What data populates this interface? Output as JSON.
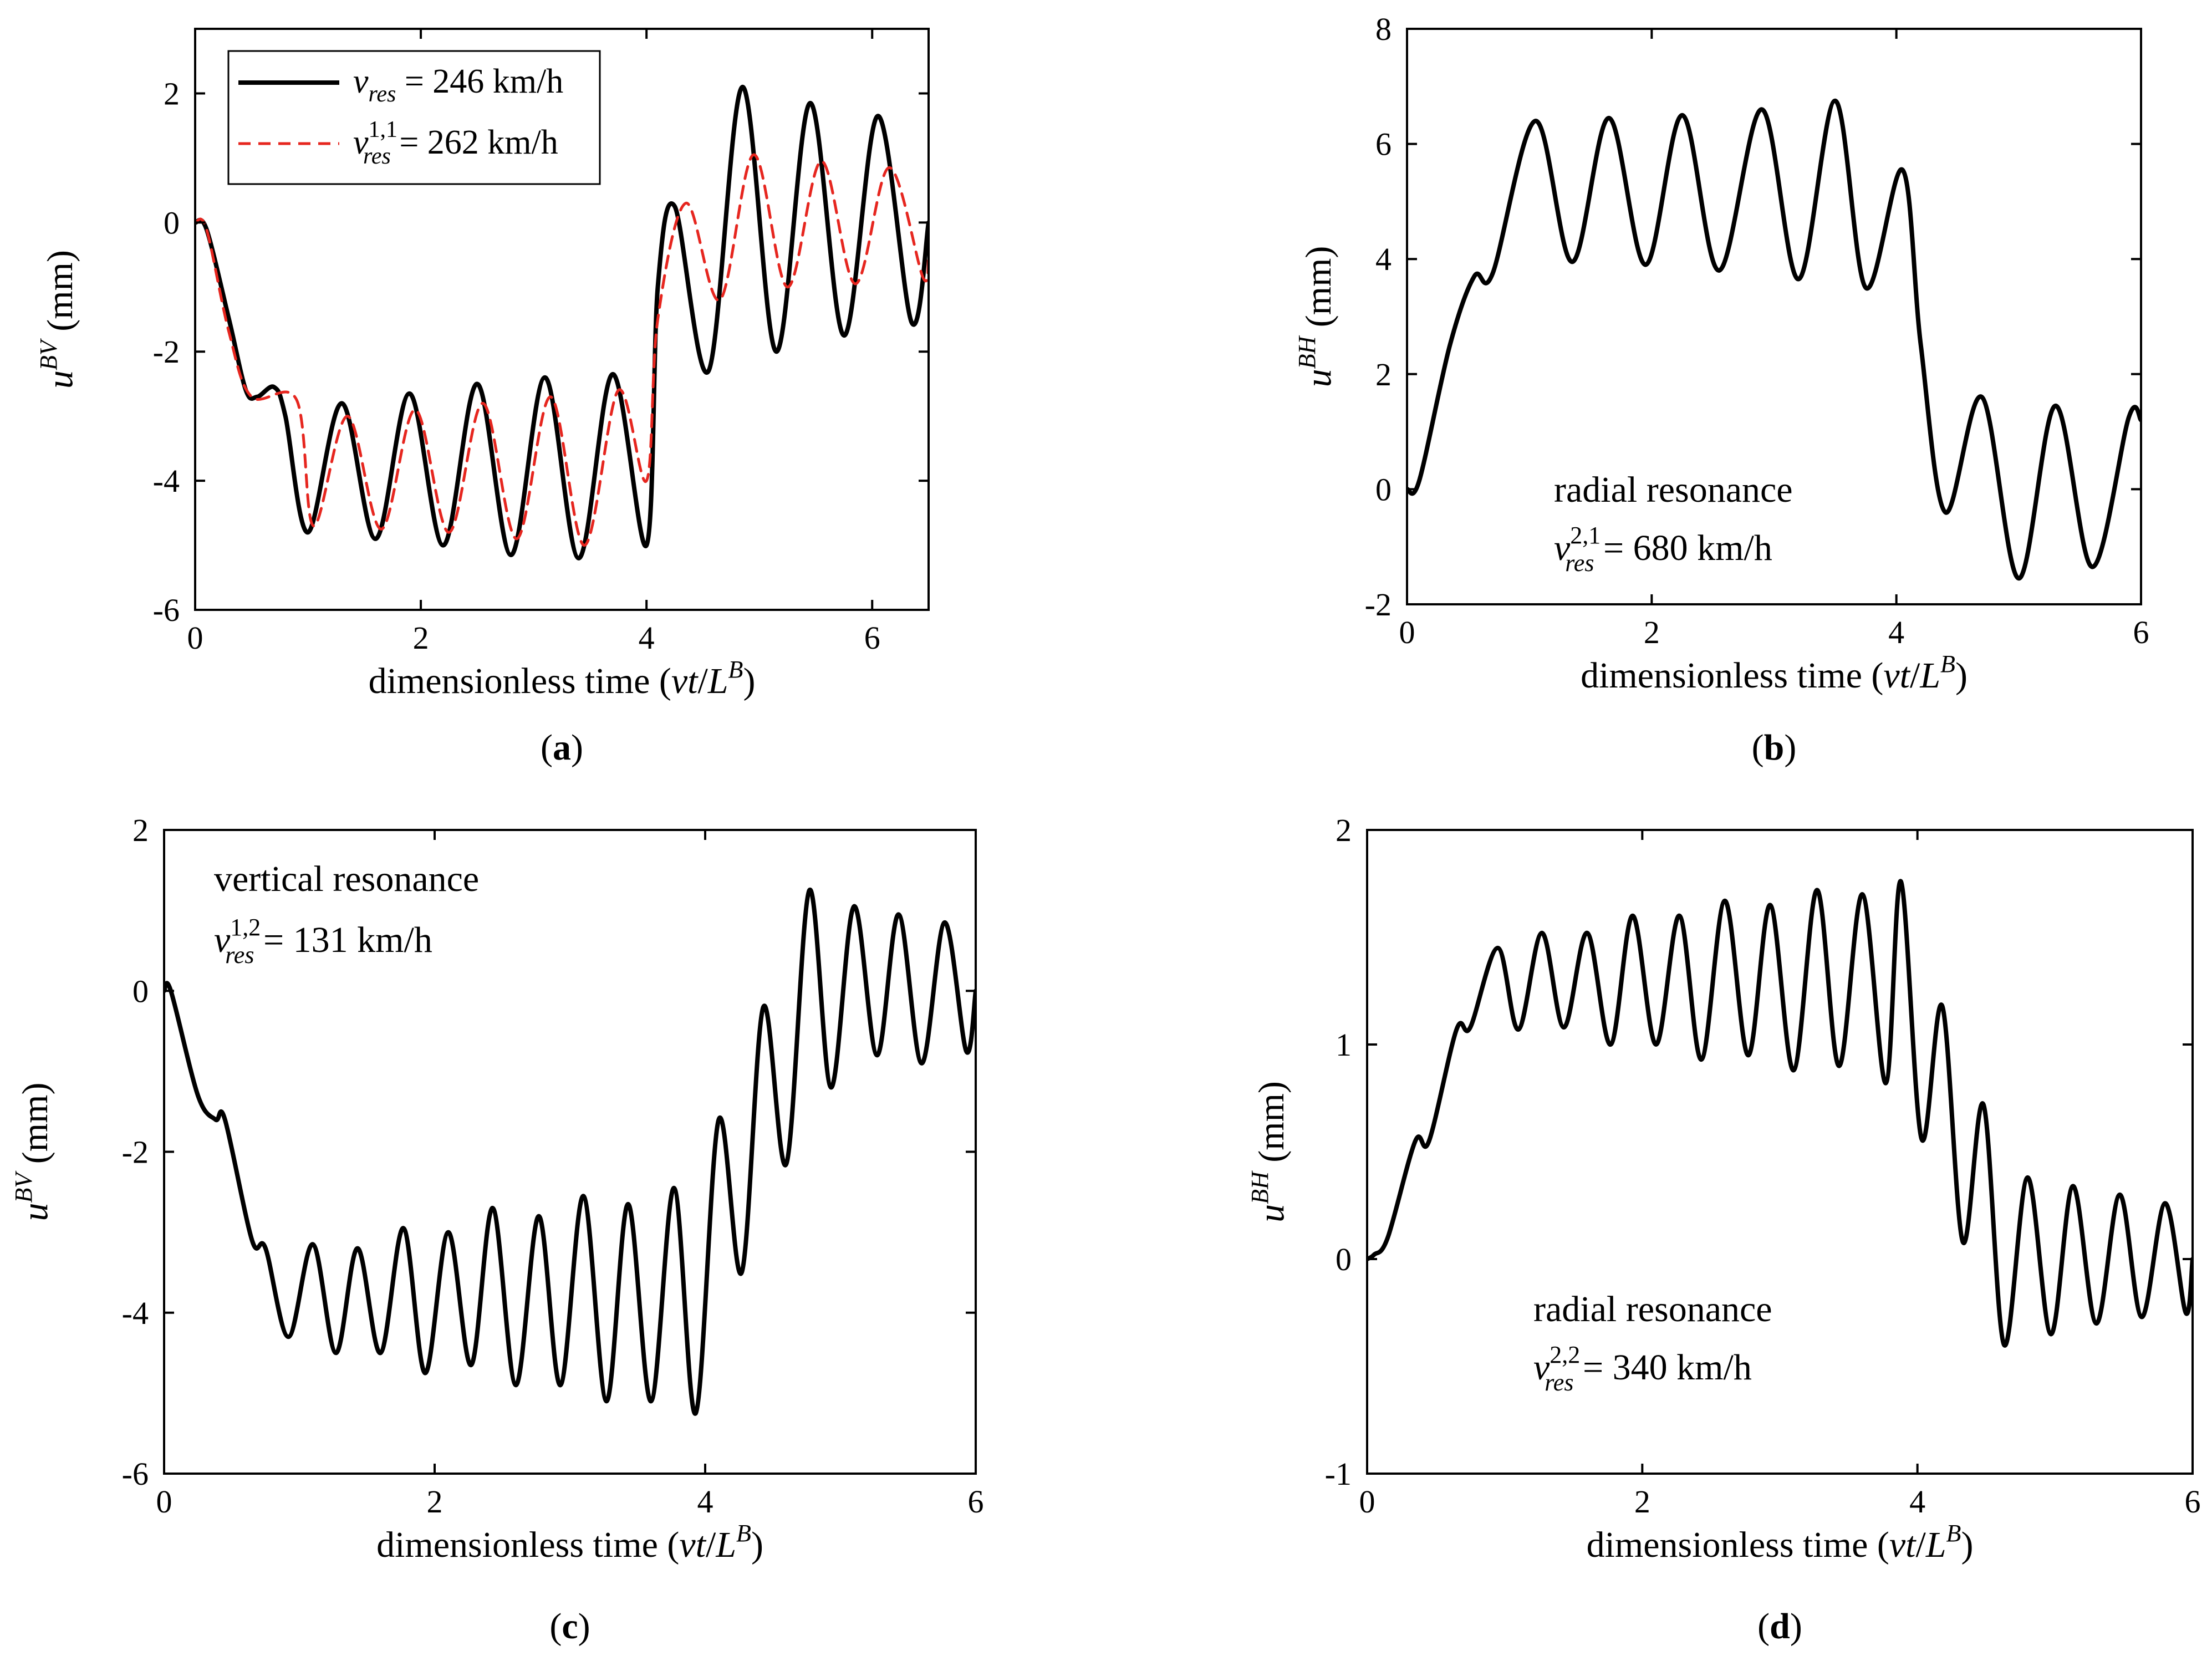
{
  "figure": {
    "panels_order": [
      "a",
      "b",
      "c",
      "d"
    ]
  },
  "chart_data": [
    {
      "id": "a",
      "type": "line",
      "sublabel": "a",
      "xlabel_text": "dimensionless time (vt/L^B)",
      "ylabel_text": "u^BV (mm)",
      "xlabel": {
        "pre": "dimensionless time (",
        "var": "vt",
        "slash": "/",
        "L": "L",
        "sup": "B",
        "post": ")"
      },
      "ylabel": {
        "u": "u",
        "sup": "BV",
        "unit": " (mm)"
      },
      "xlim": [
        0,
        6.5
      ],
      "ylim": [
        -6,
        3
      ],
      "xticks": [
        0,
        2,
        4,
        6
      ],
      "yticks": [
        -6,
        -4,
        -2,
        0,
        2
      ],
      "legend": {
        "position": "top-left",
        "entries": [
          {
            "sym": "v",
            "sub": "res",
            "sup": "",
            "text": " = 246 km/h",
            "label": "v_res = 246 km/h"
          },
          {
            "sym": "v",
            "sub": "res",
            "sup": "1,1",
            "text": " = 262 km/h",
            "label": "v_res^1,1 = 262 km/h"
          }
        ]
      },
      "annotations": [],
      "series": [
        {
          "name": "v_res = 246 km/h",
          "color": "#000000",
          "dash": "solid",
          "x": [
            0,
            0.1,
            0.3,
            0.45,
            0.55,
            0.7,
            0.8,
            1.0,
            1.3,
            1.6,
            1.9,
            2.2,
            2.5,
            2.8,
            3.1,
            3.4,
            3.7,
            4.0,
            4.1,
            4.25,
            4.55,
            4.85,
            5.15,
            5.45,
            5.75,
            6.05,
            6.35,
            6.5
          ],
          "y": [
            0,
            -0.1,
            -1.5,
            -2.6,
            -2.7,
            -2.55,
            -3.0,
            -4.8,
            -2.8,
            -4.9,
            -2.65,
            -5.0,
            -2.5,
            -5.15,
            -2.4,
            -5.2,
            -2.35,
            -5.0,
            -1.0,
            0.25,
            -2.3,
            2.1,
            -2.0,
            1.85,
            -1.75,
            1.65,
            -1.55,
            0.0
          ]
        },
        {
          "name": "v_res^1,1 = 262 km/h",
          "color": "#e6261f",
          "dash": "dashed",
          "x": [
            0,
            0.1,
            0.3,
            0.5,
            0.9,
            1.05,
            1.35,
            1.65,
            1.95,
            2.25,
            2.55,
            2.85,
            3.15,
            3.45,
            3.75,
            4.0,
            4.1,
            4.35,
            4.65,
            4.95,
            5.25,
            5.55,
            5.85,
            6.15,
            6.45,
            6.5
          ],
          "y": [
            0,
            -0.1,
            -1.7,
            -2.7,
            -2.75,
            -4.7,
            -3.0,
            -4.75,
            -2.9,
            -4.8,
            -2.8,
            -4.9,
            -2.7,
            -5.0,
            -2.6,
            -4.0,
            -1.5,
            0.3,
            -1.2,
            1.05,
            -1.0,
            0.95,
            -0.95,
            0.85,
            -0.85,
            -0.5
          ]
        }
      ]
    },
    {
      "id": "b",
      "type": "line",
      "sublabel": "b",
      "xlabel_text": "dimensionless time (vt/L^B)",
      "ylabel_text": "u^BH (mm)",
      "xlabel": {
        "pre": "dimensionless time (",
        "var": "vt",
        "slash": "/",
        "L": "L",
        "sup": "B",
        "post": ")"
      },
      "ylabel": {
        "u": "u",
        "sup": "BH",
        "unit": " (mm)"
      },
      "xlim": [
        0,
        6
      ],
      "ylim": [
        -2,
        8
      ],
      "xticks": [
        0,
        2,
        4,
        6
      ],
      "yticks": [
        -2,
        0,
        2,
        4,
        6,
        8
      ],
      "legend": null,
      "annotations": [
        {
          "kind": "text",
          "position": "lower-middle",
          "text": "radial resonance"
        },
        {
          "kind": "speed",
          "position": "lower-middle",
          "sym": "v",
          "sub": "res",
          "sup": "2,1",
          "text": " = 680 km/h",
          "label": "v_res^2,1 = 680 km/h"
        }
      ],
      "series": [
        {
          "name": "u^BH",
          "color": "#000000",
          "dash": "solid",
          "x": [
            0,
            0.1,
            0.35,
            0.55,
            0.7,
            1.05,
            1.35,
            1.65,
            1.95,
            2.25,
            2.55,
            2.9,
            3.2,
            3.5,
            3.75,
            4.05,
            4.2,
            4.4,
            4.7,
            5.0,
            5.3,
            5.6,
            5.9,
            6.0
          ],
          "y": [
            0,
            0.15,
            2.5,
            3.7,
            3.75,
            6.4,
            3.95,
            6.45,
            3.9,
            6.5,
            3.8,
            6.6,
            3.65,
            6.75,
            3.5,
            5.55,
            2.5,
            -0.4,
            1.6,
            -1.55,
            1.45,
            -1.35,
            1.25,
            1.2
          ]
        }
      ]
    },
    {
      "id": "c",
      "type": "line",
      "sublabel": "c",
      "xlabel_text": "dimensionless time (vt/L^B)",
      "ylabel_text": "u^BV (mm)",
      "xlabel": {
        "pre": "dimensionless time (",
        "var": "vt",
        "slash": "/",
        "L": "L",
        "sup": "B",
        "post": ")"
      },
      "ylabel": {
        "u": "u",
        "sup": "BV",
        "unit": " (mm)"
      },
      "xlim": [
        0,
        6
      ],
      "ylim": [
        -6,
        2
      ],
      "xticks": [
        0,
        2,
        4,
        6
      ],
      "yticks": [
        -6,
        -4,
        -2,
        0,
        2
      ],
      "legend": null,
      "annotations": [
        {
          "kind": "text",
          "position": "top-left",
          "text": "vertical resonance"
        },
        {
          "kind": "speed",
          "position": "top-left",
          "sym": "v",
          "sub": "res",
          "sup": "1,2",
          "text": " = 131 km/h",
          "label": "v_res^1,2 = 131 km/h"
        }
      ],
      "series": [
        {
          "name": "u^BV",
          "color": "#000000",
          "dash": "solid",
          "x": [
            0,
            0.05,
            0.25,
            0.38,
            0.45,
            0.65,
            0.75,
            0.92,
            1.1,
            1.27,
            1.43,
            1.6,
            1.77,
            1.93,
            2.1,
            2.27,
            2.43,
            2.6,
            2.77,
            2.93,
            3.1,
            3.27,
            3.43,
            3.6,
            3.77,
            3.93,
            4.1,
            4.27,
            4.43,
            4.6,
            4.77,
            4.93,
            5.1,
            5.27,
            5.43,
            5.6,
            5.77,
            5.93,
            6.0
          ],
          "y": [
            0,
            0,
            -1.3,
            -1.6,
            -1.6,
            -3.1,
            -3.2,
            -4.3,
            -3.15,
            -4.5,
            -3.2,
            -4.5,
            -2.95,
            -4.75,
            -3.0,
            -4.65,
            -2.7,
            -4.9,
            -2.8,
            -4.9,
            -2.55,
            -5.1,
            -2.65,
            -5.1,
            -2.45,
            -5.25,
            -1.6,
            -3.5,
            -0.2,
            -2.15,
            1.25,
            -1.2,
            1.05,
            -0.8,
            0.95,
            -0.9,
            0.85,
            -0.75,
            0.0
          ]
        }
      ]
    },
    {
      "id": "d",
      "type": "line",
      "sublabel": "d",
      "xlabel_text": "dimensionless time (vt/L^B)",
      "ylabel_text": "u^BH (mm)",
      "xlabel": {
        "pre": "dimensionless time (",
        "var": "vt",
        "slash": "/",
        "L": "L",
        "sup": "B",
        "post": ")"
      },
      "ylabel": {
        "u": "u",
        "sup": "BH",
        "unit": " (mm)"
      },
      "xlim": [
        0,
        6
      ],
      "ylim": [
        -1,
        2
      ],
      "xticks": [
        0,
        2,
        4,
        6
      ],
      "yticks": [
        -1,
        0,
        1,
        2
      ],
      "legend": null,
      "annotations": [
        {
          "kind": "text",
          "position": "lower-middle",
          "text": "radial resonance"
        },
        {
          "kind": "speed",
          "position": "lower-middle",
          "sym": "v",
          "sub": "res",
          "sup": "2,2",
          "text": " = 340 km/h",
          "label": "v_res^2,2 = 340 km/h"
        }
      ],
      "series": [
        {
          "name": "u^BH",
          "color": "#000000",
          "dash": "solid",
          "x": [
            0,
            0.05,
            0.15,
            0.35,
            0.45,
            0.65,
            0.75,
            0.95,
            1.1,
            1.27,
            1.43,
            1.6,
            1.77,
            1.93,
            2.1,
            2.27,
            2.43,
            2.6,
            2.77,
            2.93,
            3.1,
            3.27,
            3.43,
            3.6,
            3.77,
            3.88,
            4.03,
            4.18,
            4.33,
            4.48,
            4.63,
            4.8,
            4.97,
            5.13,
            5.3,
            5.47,
            5.63,
            5.8,
            5.95,
            6.0
          ],
          "y": [
            0,
            0.02,
            0.1,
            0.55,
            0.55,
            1.07,
            1.08,
            1.45,
            1.07,
            1.52,
            1.08,
            1.52,
            1.0,
            1.6,
            1.0,
            1.6,
            0.93,
            1.67,
            0.95,
            1.65,
            0.88,
            1.72,
            0.9,
            1.7,
            0.82,
            1.76,
            0.56,
            1.18,
            0.08,
            0.72,
            -0.4,
            0.38,
            -0.35,
            0.34,
            -0.3,
            0.3,
            -0.27,
            0.26,
            -0.25,
            0.0
          ]
        }
      ]
    }
  ]
}
